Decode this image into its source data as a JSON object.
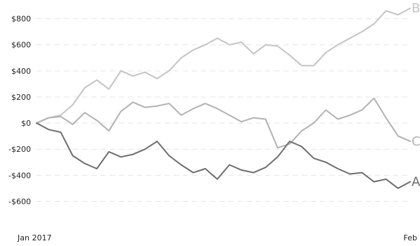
{
  "chart_data": {
    "type": "line",
    "title": "",
    "xlabel": "",
    "ylabel": "",
    "x_range": [
      "2017-01-01",
      "2017-02-01"
    ],
    "x_ticks": [
      {
        "date": "2017-01-01",
        "label": "Jan 2017"
      },
      {
        "date": "2017-02-01",
        "label": "Feb"
      }
    ],
    "ylim": [
      -700,
      900
    ],
    "y_ticks": [
      {
        "value": 800,
        "label": "$800"
      },
      {
        "value": 600,
        "label": "$600"
      },
      {
        "value": 400,
        "label": "$400"
      },
      {
        "value": 200,
        "label": "$200"
      },
      {
        "value": 0,
        "label": "$0"
      },
      {
        "value": -200,
        "label": "-$200"
      },
      {
        "value": -400,
        "label": "-$400"
      },
      {
        "value": -600,
        "label": "-$600"
      }
    ],
    "grid": true,
    "series": [
      {
        "name": "B",
        "color": "#c4c4c4",
        "points": [
          [
            "2017-01-01",
            0
          ],
          [
            "2017-01-02",
            40
          ],
          [
            "2017-01-03",
            60
          ],
          [
            "2017-01-04",
            140
          ],
          [
            "2017-01-05",
            270
          ],
          [
            "2017-01-06",
            330
          ],
          [
            "2017-01-07",
            260
          ],
          [
            "2017-01-08",
            400
          ],
          [
            "2017-01-09",
            360
          ],
          [
            "2017-01-10",
            390
          ],
          [
            "2017-01-11",
            340
          ],
          [
            "2017-01-12",
            400
          ],
          [
            "2017-01-13",
            500
          ],
          [
            "2017-01-14",
            560
          ],
          [
            "2017-01-15",
            600
          ],
          [
            "2017-01-16",
            650
          ],
          [
            "2017-01-17",
            600
          ],
          [
            "2017-01-18",
            620
          ],
          [
            "2017-01-19",
            530
          ],
          [
            "2017-01-20",
            600
          ],
          [
            "2017-01-21",
            590
          ],
          [
            "2017-01-22",
            520
          ],
          [
            "2017-01-23",
            440
          ],
          [
            "2017-01-24",
            440
          ],
          [
            "2017-01-25",
            540
          ],
          [
            "2017-01-26",
            600
          ],
          [
            "2017-01-27",
            650
          ],
          [
            "2017-01-28",
            700
          ],
          [
            "2017-01-29",
            760
          ],
          [
            "2017-01-30",
            860
          ],
          [
            "2017-01-31",
            830
          ],
          [
            "2017-02-01",
            880
          ]
        ]
      },
      {
        "name": "C",
        "color": "#b2b2b2",
        "points": [
          [
            "2017-01-01",
            0
          ],
          [
            "2017-01-02",
            40
          ],
          [
            "2017-01-03",
            50
          ],
          [
            "2017-01-04",
            -10
          ],
          [
            "2017-01-05",
            80
          ],
          [
            "2017-01-06",
            20
          ],
          [
            "2017-01-07",
            -60
          ],
          [
            "2017-01-08",
            90
          ],
          [
            "2017-01-09",
            160
          ],
          [
            "2017-01-10",
            120
          ],
          [
            "2017-01-11",
            130
          ],
          [
            "2017-01-12",
            150
          ],
          [
            "2017-01-13",
            60
          ],
          [
            "2017-01-14",
            110
          ],
          [
            "2017-01-15",
            150
          ],
          [
            "2017-01-16",
            110
          ],
          [
            "2017-01-17",
            60
          ],
          [
            "2017-01-18",
            10
          ],
          [
            "2017-01-19",
            40
          ],
          [
            "2017-01-20",
            30
          ],
          [
            "2017-01-21",
            -190
          ],
          [
            "2017-01-22",
            -160
          ],
          [
            "2017-01-23",
            -60
          ],
          [
            "2017-01-24",
            0
          ],
          [
            "2017-01-25",
            100
          ],
          [
            "2017-01-26",
            30
          ],
          [
            "2017-01-27",
            60
          ],
          [
            "2017-01-28",
            100
          ],
          [
            "2017-01-29",
            190
          ],
          [
            "2017-01-30",
            40
          ],
          [
            "2017-01-31",
            -100
          ],
          [
            "2017-02-01",
            -140
          ]
        ]
      },
      {
        "name": "A",
        "color": "#6e6e6e",
        "points": [
          [
            "2017-01-01",
            0
          ],
          [
            "2017-01-02",
            -50
          ],
          [
            "2017-01-03",
            -70
          ],
          [
            "2017-01-04",
            -250
          ],
          [
            "2017-01-05",
            -310
          ],
          [
            "2017-01-06",
            -350
          ],
          [
            "2017-01-07",
            -220
          ],
          [
            "2017-01-08",
            -260
          ],
          [
            "2017-01-09",
            -240
          ],
          [
            "2017-01-10",
            -200
          ],
          [
            "2017-01-11",
            -140
          ],
          [
            "2017-01-12",
            -250
          ],
          [
            "2017-01-13",
            -320
          ],
          [
            "2017-01-14",
            -380
          ],
          [
            "2017-01-15",
            -350
          ],
          [
            "2017-01-16",
            -430
          ],
          [
            "2017-01-17",
            -320
          ],
          [
            "2017-01-18",
            -360
          ],
          [
            "2017-01-19",
            -380
          ],
          [
            "2017-01-20",
            -340
          ],
          [
            "2017-01-21",
            -260
          ],
          [
            "2017-01-22",
            -140
          ],
          [
            "2017-01-23",
            -180
          ],
          [
            "2017-01-24",
            -270
          ],
          [
            "2017-01-25",
            -300
          ],
          [
            "2017-01-26",
            -350
          ],
          [
            "2017-01-27",
            -390
          ],
          [
            "2017-01-28",
            -380
          ],
          [
            "2017-01-29",
            -450
          ],
          [
            "2017-01-30",
            -430
          ],
          [
            "2017-01-31",
            -500
          ],
          [
            "2017-02-01",
            -450
          ]
        ]
      }
    ]
  }
}
